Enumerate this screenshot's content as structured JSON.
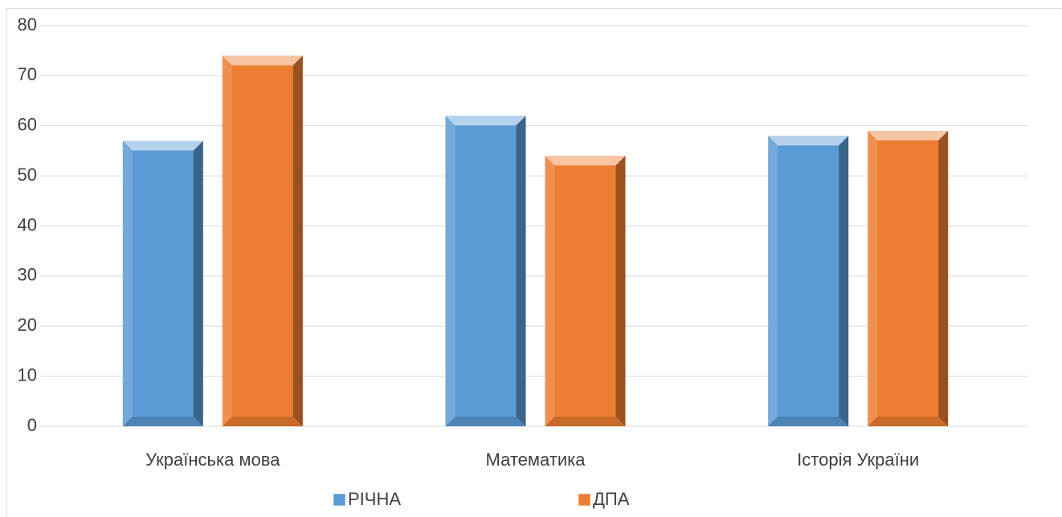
{
  "chart_data": {
    "type": "bar",
    "categories": [
      "Українська мова",
      "Математика",
      "Історія України"
    ],
    "series": [
      {
        "name": "РІЧНА",
        "color": "#5b9bd5",
        "values": [
          57,
          62,
          58
        ]
      },
      {
        "name": "ДПА",
        "color": "#ed7d31",
        "values": [
          74,
          54,
          59
        ]
      }
    ],
    "ylim": [
      0,
      80
    ],
    "yticks": [
      0,
      10,
      20,
      30,
      40,
      50,
      60,
      70,
      80
    ],
    "grid": true,
    "legend": "bottom"
  }
}
